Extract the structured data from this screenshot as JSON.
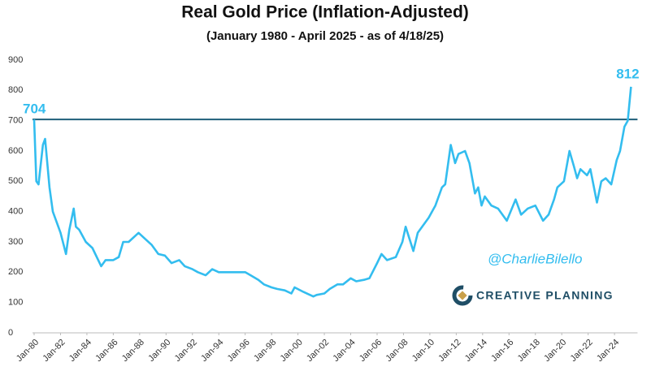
{
  "chart_data": {
    "type": "line",
    "title": "Real Gold Price (Inflation-Adjusted)",
    "subtitle": "(January 1980 - April 2025 - as of 4/18/25)",
    "color": "#33bdef",
    "x": [
      "1980-01",
      "1980-03",
      "1980-05",
      "1980-09",
      "1980-11",
      "1981-03",
      "1981-06",
      "1981-09",
      "1982-01",
      "1982-06",
      "1982-09",
      "1983-01",
      "1983-03",
      "1983-06",
      "1983-12",
      "1984-06",
      "1985-02",
      "1985-06",
      "1986-01",
      "1986-06",
      "1986-10",
      "1987-03",
      "1987-12",
      "1988-06",
      "1988-12",
      "1989-06",
      "1989-12",
      "1990-06",
      "1991-01",
      "1991-06",
      "1992-01",
      "1992-06",
      "1993-01",
      "1993-07",
      "1994-01",
      "1994-06",
      "1995-06",
      "1996-01",
      "1996-06",
      "1997-01",
      "1997-06",
      "1998-01",
      "1998-06",
      "1999-01",
      "1999-07",
      "1999-10",
      "2000-06",
      "2001-03",
      "2001-06",
      "2002-01",
      "2002-06",
      "2003-01",
      "2003-06",
      "2004-01",
      "2004-06",
      "2005-01",
      "2005-06",
      "2006-01",
      "2006-05",
      "2006-10",
      "2007-06",
      "2007-12",
      "2008-03",
      "2008-10",
      "2009-02",
      "2009-12",
      "2010-06",
      "2010-12",
      "2011-03",
      "2011-08",
      "2011-12",
      "2012-03",
      "2012-09",
      "2013-01",
      "2013-06",
      "2013-09",
      "2013-12",
      "2014-03",
      "2014-09",
      "2015-03",
      "2015-11",
      "2016-07",
      "2016-12",
      "2017-06",
      "2018-01",
      "2018-08",
      "2019-01",
      "2019-06",
      "2019-09",
      "2020-03",
      "2020-08",
      "2020-12",
      "2021-03",
      "2021-06",
      "2021-12",
      "2022-03",
      "2022-09",
      "2023-01",
      "2023-05",
      "2023-10",
      "2024-03",
      "2024-06",
      "2024-10",
      "2025-01",
      "2025-04"
    ],
    "values": [
      704,
      500,
      490,
      620,
      640,
      480,
      400,
      370,
      330,
      260,
      340,
      410,
      350,
      340,
      300,
      280,
      220,
      240,
      240,
      250,
      300,
      300,
      330,
      310,
      290,
      260,
      255,
      230,
      240,
      220,
      210,
      200,
      190,
      210,
      200,
      200,
      200,
      200,
      190,
      175,
      160,
      150,
      145,
      140,
      130,
      150,
      135,
      120,
      125,
      130,
      145,
      160,
      160,
      180,
      170,
      175,
      180,
      230,
      260,
      240,
      250,
      300,
      350,
      270,
      330,
      380,
      420,
      480,
      490,
      620,
      560,
      590,
      600,
      560,
      460,
      480,
      420,
      450,
      420,
      410,
      370,
      440,
      390,
      410,
      420,
      370,
      390,
      440,
      480,
      500,
      600,
      550,
      510,
      540,
      520,
      540,
      430,
      500,
      510,
      490,
      570,
      600,
      680,
      700,
      812
    ],
    "reference_line": 704,
    "ylim": [
      0,
      900
    ],
    "yticks": [
      0,
      100,
      200,
      300,
      400,
      500,
      600,
      700,
      800,
      900
    ],
    "xticks": [
      {
        "value": "1980-01",
        "label": "Jan-80"
      },
      {
        "value": "1982-01",
        "label": "Jan-82"
      },
      {
        "value": "1984-01",
        "label": "Jan-84"
      },
      {
        "value": "1986-01",
        "label": "Jan-86"
      },
      {
        "value": "1988-01",
        "label": "Jan-88"
      },
      {
        "value": "1990-01",
        "label": "Jan-90"
      },
      {
        "value": "1992-01",
        "label": "Jan-92"
      },
      {
        "value": "1994-01",
        "label": "Jan-94"
      },
      {
        "value": "1996-01",
        "label": "Jan-96"
      },
      {
        "value": "1998-01",
        "label": "Jan-98"
      },
      {
        "value": "2000-01",
        "label": "Jan-00"
      },
      {
        "value": "2002-01",
        "label": "Jan-02"
      },
      {
        "value": "2004-01",
        "label": "Jan-04"
      },
      {
        "value": "2006-01",
        "label": "Jan-06"
      },
      {
        "value": "2008-01",
        "label": "Jan-08"
      },
      {
        "value": "2010-01",
        "label": "Jan-10"
      },
      {
        "value": "2012-01",
        "label": "Jan-12"
      },
      {
        "value": "2014-01",
        "label": "Jan-14"
      },
      {
        "value": "2016-01",
        "label": "Jan-16"
      },
      {
        "value": "2018-01",
        "label": "Jan-18"
      },
      {
        "value": "2020-01",
        "label": "Jan-20"
      },
      {
        "value": "2022-01",
        "label": "Jan-22"
      },
      {
        "value": "2024-01",
        "label": "Jan-24"
      }
    ],
    "watermark": "@CharlieBilello",
    "logo": "CREATIVE PLANNING"
  }
}
